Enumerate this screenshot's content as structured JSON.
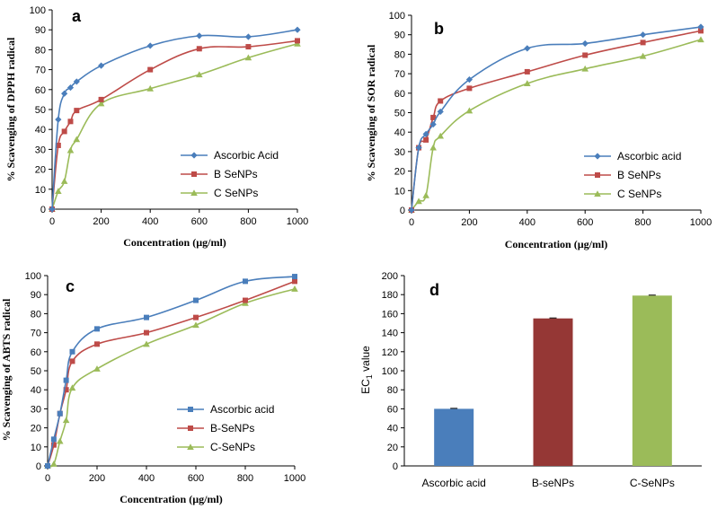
{
  "chart_data": [
    {
      "type": "line",
      "panel_label": "a",
      "xlabel": "Concentration (µg/ml)",
      "ylabel": "% Scavenging of DPPH radical",
      "xlim": [
        0,
        1000
      ],
      "ylim": [
        0,
        100
      ],
      "xticks": [
        "0",
        "200",
        "400",
        "600",
        "800",
        "1000"
      ],
      "yticks": [
        "0",
        "10",
        "20",
        "30",
        "40",
        "50",
        "60",
        "70",
        "80",
        "90",
        "100"
      ],
      "legend_position": "lower-right",
      "series": [
        {
          "name": "Ascorbic Acid",
          "color": "#4a7ebb",
          "marker": "diamond",
          "x": [
            0,
            25,
            50,
            75,
            100,
            200,
            400,
            600,
            800,
            1000
          ],
          "y": [
            0,
            45,
            58,
            61,
            64,
            72,
            82,
            87,
            86.5,
            90
          ]
        },
        {
          "name": "B SeNPs",
          "color": "#be4b48",
          "marker": "square",
          "x": [
            0,
            25,
            50,
            75,
            100,
            200,
            400,
            600,
            800,
            1000
          ],
          "y": [
            0,
            32,
            39,
            44,
            49.5,
            55,
            70,
            80.5,
            81.5,
            84.5
          ]
        },
        {
          "name": "C SeNPs",
          "color": "#9bbb59",
          "marker": "triangle",
          "x": [
            0,
            25,
            50,
            75,
            100,
            200,
            400,
            600,
            800,
            1000
          ],
          "y": [
            0,
            9,
            14,
            29.5,
            35,
            53,
            60.5,
            67.5,
            76,
            83
          ]
        }
      ]
    },
    {
      "type": "line",
      "panel_label": "b",
      "xlabel": "Concentration (µg/ml)",
      "ylabel": "% Scavenging of SOR radical",
      "xlim": [
        0,
        1000
      ],
      "ylim": [
        0,
        100
      ],
      "xticks": [
        "0",
        "200",
        "400",
        "600",
        "800",
        "1000"
      ],
      "yticks": [
        "0",
        "10",
        "20",
        "30",
        "40",
        "50",
        "60",
        "70",
        "80",
        "90",
        "100"
      ],
      "legend_position": "lower-right",
      "series": [
        {
          "name": "Ascorbic acid",
          "color": "#4a7ebb",
          "marker": "diamond",
          "x": [
            0,
            25,
            50,
            75,
            100,
            200,
            400,
            600,
            800,
            1000
          ],
          "y": [
            0,
            32,
            39,
            44,
            50.5,
            67,
            83,
            85.5,
            90,
            94
          ]
        },
        {
          "name": "B SeNPs",
          "color": "#be4b48",
          "marker": "square",
          "x": [
            0,
            25,
            50,
            75,
            100,
            200,
            400,
            600,
            800,
            1000
          ],
          "y": [
            0,
            32,
            36,
            47.5,
            56,
            62.5,
            71,
            79.5,
            86,
            92
          ]
        },
        {
          "name": "C SeNPs",
          "color": "#9bbb59",
          "marker": "triangle",
          "x": [
            0,
            25,
            50,
            75,
            100,
            200,
            400,
            600,
            800,
            1000
          ],
          "y": [
            0,
            4.5,
            7.5,
            32,
            38,
            51,
            65,
            72.5,
            79,
            87.5
          ]
        }
      ]
    },
    {
      "type": "line",
      "panel_label": "c",
      "xlabel": "Concentration (µg/ml)",
      "ylabel": "% Scavenging of ABTS  radical",
      "xlim": [
        0,
        1000
      ],
      "ylim": [
        0,
        100
      ],
      "xticks": [
        "0",
        "200",
        "400",
        "600",
        "800",
        "1000"
      ],
      "yticks": [
        "0",
        "10",
        "20",
        "30",
        "40",
        "50",
        "60",
        "70",
        "80",
        "90",
        "100"
      ],
      "legend_position": "lower-right",
      "series": [
        {
          "name": "Ascorbic acid",
          "color": "#4a7ebb",
          "marker": "square",
          "x": [
            0,
            25,
            50,
            75,
            100,
            200,
            400,
            600,
            800,
            1000
          ],
          "y": [
            0,
            14,
            27.5,
            45,
            60,
            72,
            78,
            87,
            97,
            99.5
          ]
        },
        {
          "name": "B-SeNPs",
          "color": "#be4b48",
          "marker": "square",
          "x": [
            0,
            25,
            50,
            75,
            100,
            200,
            400,
            600,
            800,
            1000
          ],
          "y": [
            0,
            11,
            27.5,
            40,
            55,
            64,
            70,
            78,
            87,
            97
          ]
        },
        {
          "name": "C-SeNPs",
          "color": "#9bbb59",
          "marker": "triangle",
          "x": [
            0,
            25,
            50,
            75,
            100,
            200,
            400,
            600,
            800,
            1000
          ],
          "y": [
            0,
            1,
            13,
            24,
            41,
            51,
            64,
            74,
            85.5,
            93
          ]
        }
      ]
    },
    {
      "type": "bar",
      "panel_label": "d",
      "xlabel": "",
      "ylabel": "EC1 value",
      "ylabel_main": "EC",
      "ylabel_sub": "1",
      "ylabel_rest": " value",
      "ylim": [
        0,
        200
      ],
      "yticks": [
        "0",
        "20",
        "40",
        "60",
        "80",
        "100",
        "120",
        "140",
        "160",
        "180",
        "200"
      ],
      "categories": [
        "Ascorbic acid",
        "B-seNPs",
        "C-SeNPs"
      ],
      "values": [
        60,
        155,
        179
      ],
      "colors": [
        "#4a7ebb",
        "#953735",
        "#9bbb59"
      ]
    }
  ]
}
